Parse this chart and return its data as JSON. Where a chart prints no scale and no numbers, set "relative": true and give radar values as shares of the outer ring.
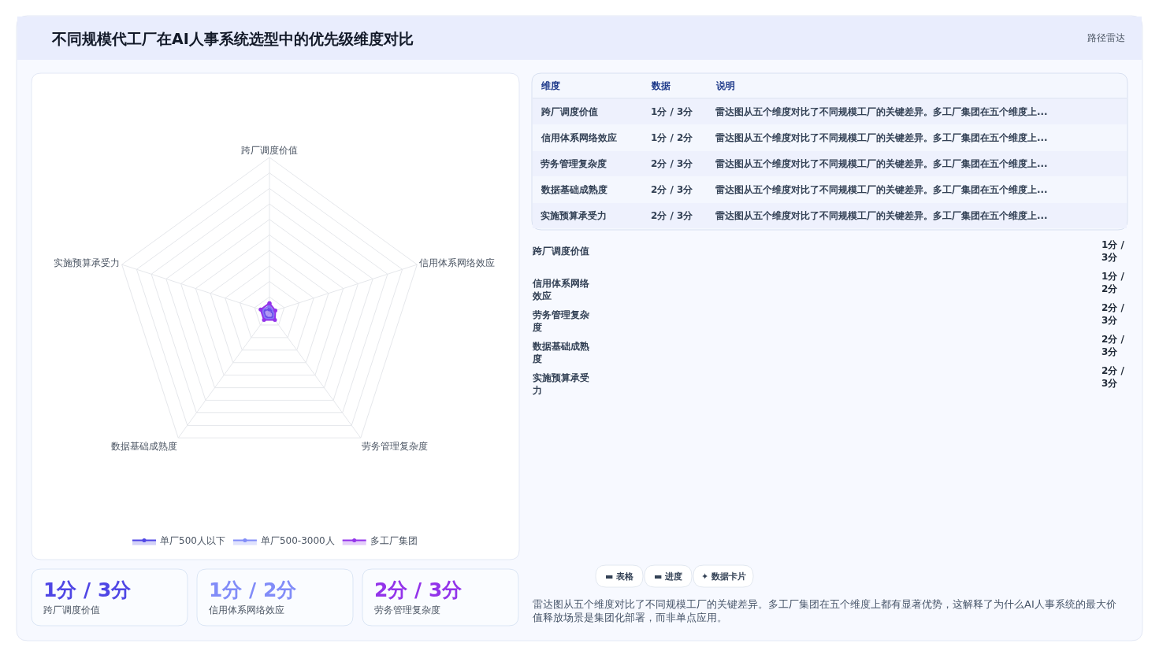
{
  "chart_data": [
    {
      "type": "radar",
      "title": "不同规模代工厂在AI人事系统选型中的优先级维度对比",
      "relative": true,
      "legend": "bottom",
      "grid": true,
      "marker": "circle",
      "categories": [
        "跨厂调度价值",
        "信用体系网络效应",
        "劳务管理复杂度",
        "数据基础成熟度",
        "实施预算承受力"
      ],
      "series": [
        {
          "name": "单厂500人以下",
          "color": "#4f46e5",
          "values": [
            0.02,
            0.02,
            0.04,
            0.04,
            0.04
          ]
        },
        {
          "name": "单厂500-3000人",
          "color": "#818cf8",
          "values": [
            0.04,
            0.03,
            0.05,
            0.05,
            0.05
          ]
        },
        {
          "name": "多工厂集团",
          "color": "#9333ea",
          "values": [
            0.06,
            0.04,
            0.06,
            0.06,
            0.06
          ]
        }
      ]
    },
    {
      "type": "other",
      "annotations": [
        "路径雷达",
        "维度",
        "数据",
        "说明",
        "跨厂调度价值",
        "1分 / 3分",
        "雷达图从五个维度对比了不同规模工厂的关键差异。多工厂集团在五个维度上...",
        "信用体系网络效应",
        "1分 / 2分",
        "雷达图从五个维度对比了不同规模工厂的关键差异。多工厂集团在五个维度上...",
        "劳务管理复杂度",
        "2分 / 3分",
        "雷达图从五个维度对比了不同规模工厂的关键差异。多工厂集团在五个维度上...",
        "数据基础成熟度",
        "2分 / 3分",
        "雷达图从五个维度对比了不同规模工厂的关键差异。多工厂集团在五个维度上...",
        "实施预算承受力",
        "2分 / 3分",
        "雷达图从五个维度对比了不同规模工厂的关键差异。多工厂集团在五个维度上...",
        "1分 / 3分",
        "跨厂调度价值",
        "1分 / 2分",
        "信用体系网络效应",
        "2分 / 3分",
        "劳务管理复杂度",
        "▬ 表格",
        "▬ 进度",
        "✦ 数据卡片",
        "雷达图从五个维度对比了不同规模工厂的关键差异。多工厂集团在五个维度上都有显著优势，这解释了为什么AI人事系统的最大价值释放场景是集团化部署，而非单点应用。",
        "跨厂调度价值",
        "1分 / 3分",
        "信用体系网络效应",
        "1分 / 2分",
        "劳务管理复杂度",
        "2分 / 3分",
        "数据基础成熟度",
        "2分 / 3分",
        "实施预算承受力",
        "2分 / 3分"
      ]
    }
  ]
}
